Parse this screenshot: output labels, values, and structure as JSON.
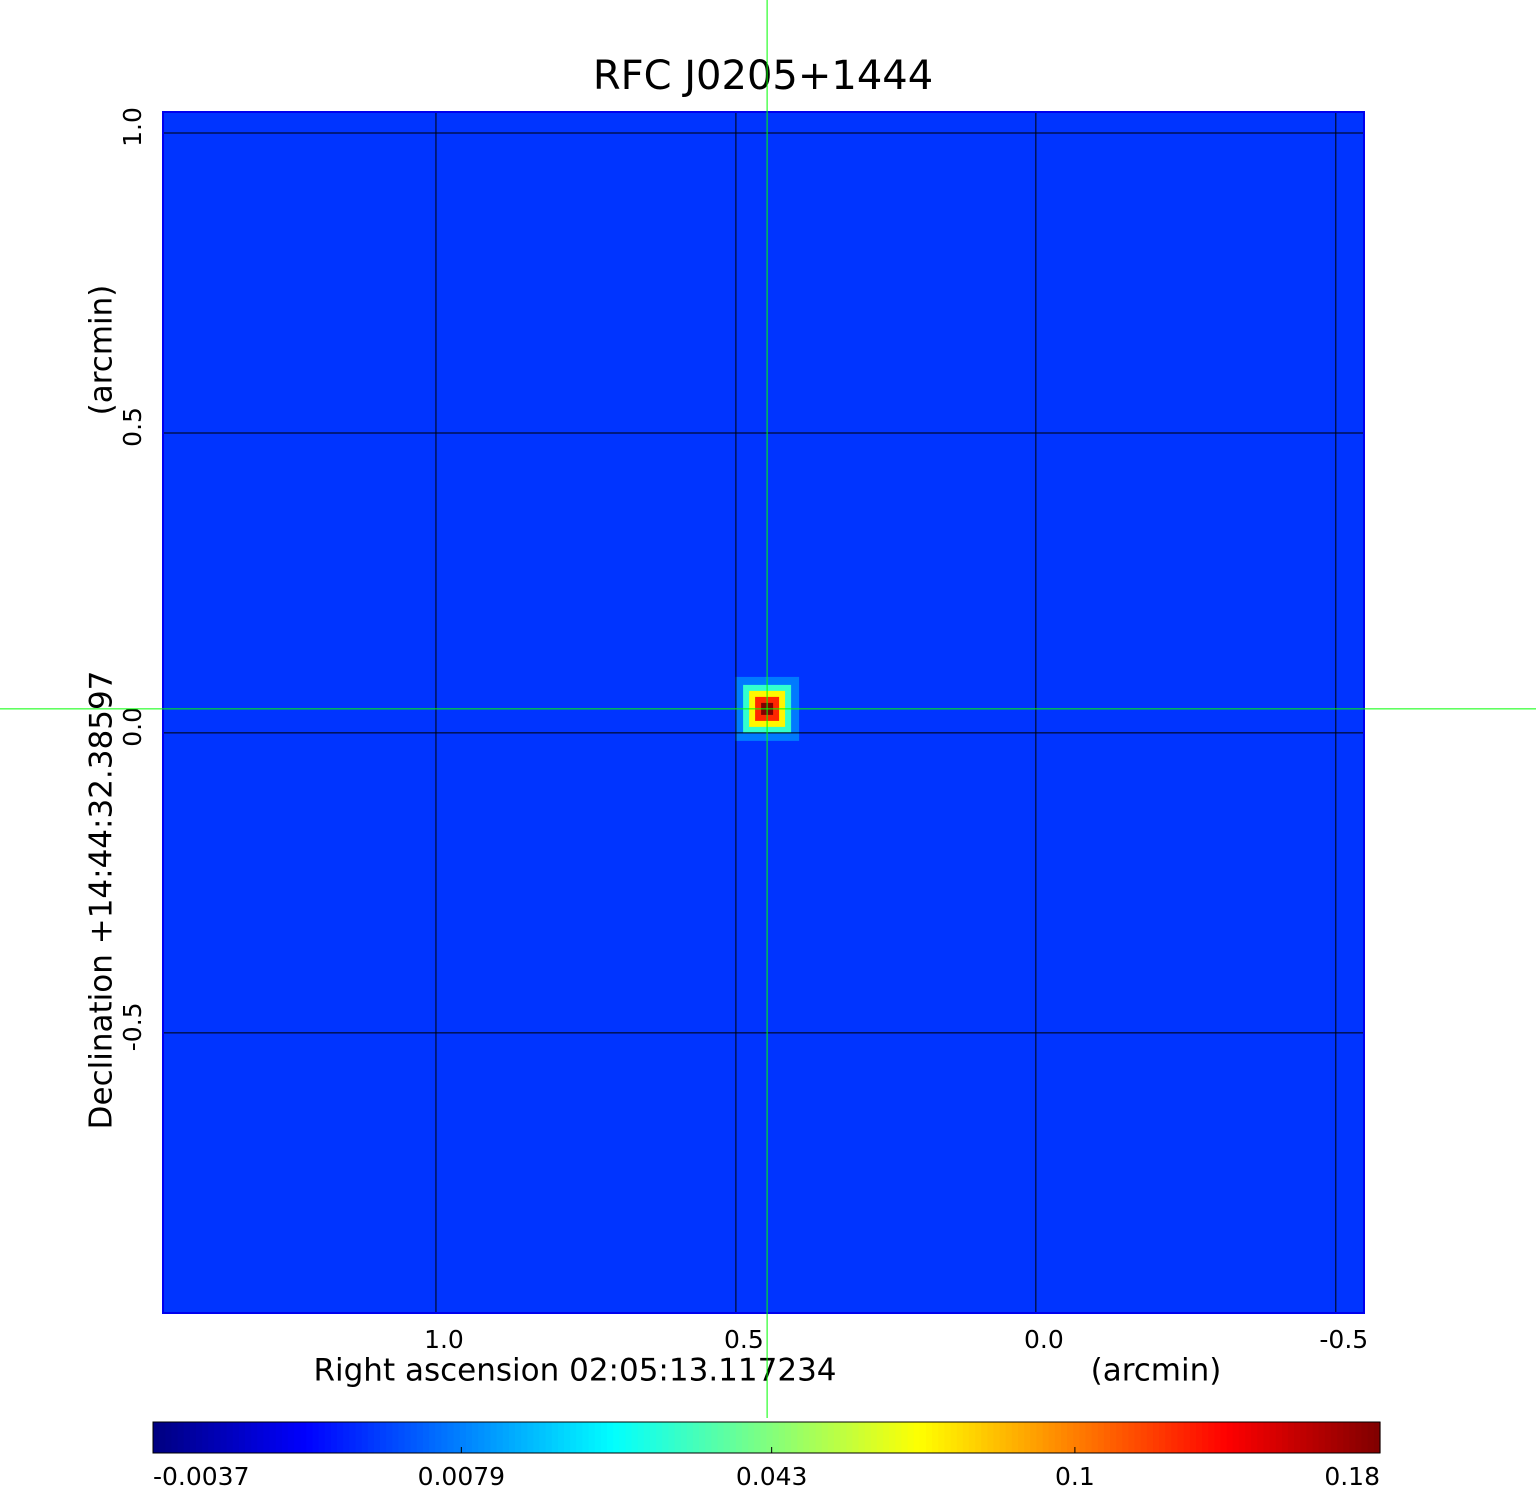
{
  "chart_data": {
    "type": "image",
    "title": "RFC J0205+1444",
    "xlabel": "Right ascension  02:05:13.117234",
    "xunit": "(arcmin)",
    "ylabel": "Declination  +14:44:32.38597",
    "yunit": "(arcmin)",
    "xlim": [
      1.455,
      -0.547
    ],
    "ylim": [
      -0.967,
      1.035
    ],
    "xticks": [
      {
        "value": 1,
        "label": "1.0"
      },
      0.5,
      {
        "value": 0,
        "label": "0.0"
      },
      -0.5
    ],
    "yticks": [
      {
        "value": 1,
        "label": "1.0"
      },
      0.5,
      {
        "value": 0,
        "label": "0.0"
      },
      -0.5
    ],
    "grid": true,
    "colormap": "jet",
    "color_scale": "sqrt",
    "clim": [
      -0.0037,
      0.18
    ],
    "colorbar_ticks": [
      -0.0037,
      0.0079,
      0.043,
      0.1,
      0.18
    ],
    "background": 0.002,
    "source": {
      "x": 0.448,
      "y": 0.04,
      "peak": 0.18
    },
    "crosshair_color": "#00ff00",
    "title_color": "#1010d0",
    "frame_color": "#0000ee"
  }
}
